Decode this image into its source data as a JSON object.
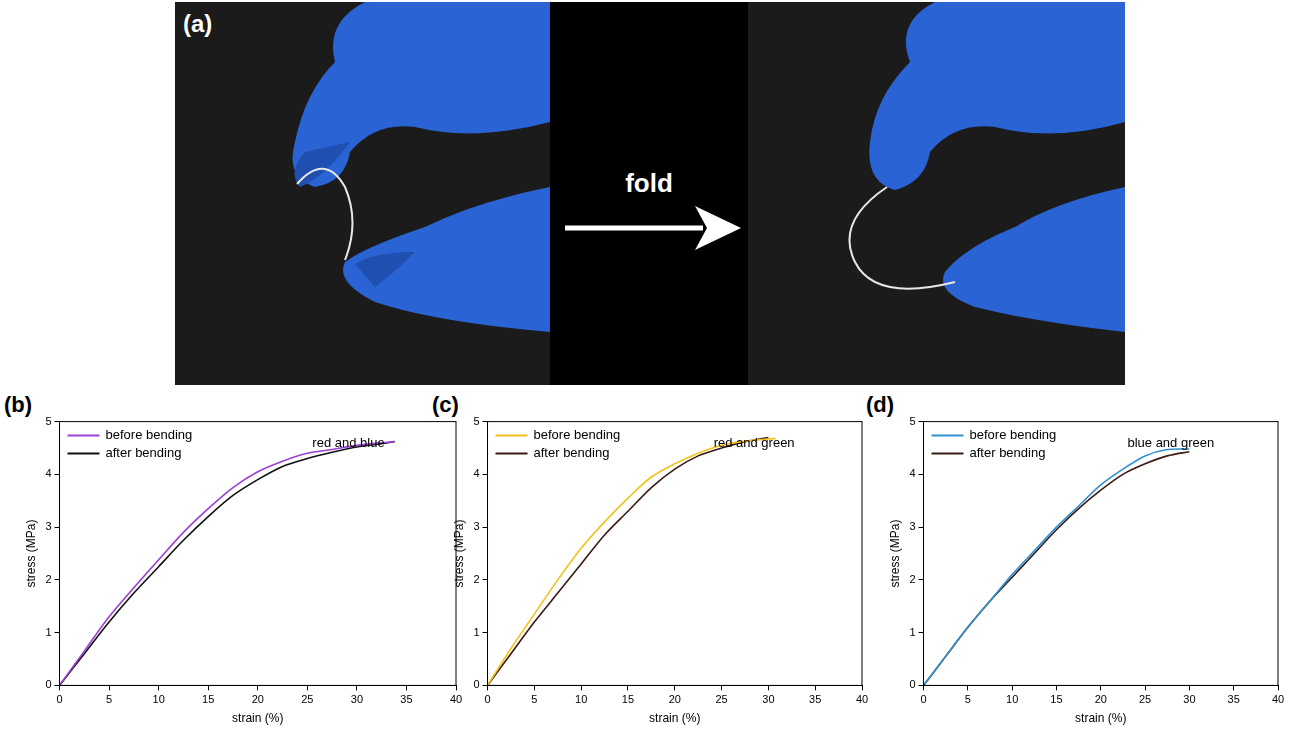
{
  "figure_a": {
    "panel_label": "(a)",
    "arrow_label": "fold"
  },
  "chart_data": [
    {
      "type": "line",
      "panel_label": "(b)",
      "annotation": "red and blue",
      "x_label": "strain (%)",
      "y_label": "stress (MPa)",
      "x": [
        0,
        2.5,
        5,
        7.5,
        10,
        12.5,
        15,
        17.5,
        20,
        22.5,
        25,
        27.5,
        30,
        32.5,
        33.8
      ],
      "series": [
        {
          "name": "before bending",
          "color": "#9b3fd6",
          "marker": "none",
          "line_style": "solid",
          "values": [
            0,
            0.65,
            1.3,
            1.85,
            2.38,
            2.9,
            3.35,
            3.75,
            4.05,
            4.25,
            4.4,
            4.47,
            4.55,
            4.6,
            4.62
          ]
        },
        {
          "name": "after bending",
          "color": "#111111",
          "marker": "none",
          "line_style": "solid",
          "values": [
            0,
            0.6,
            1.2,
            1.75,
            2.25,
            2.75,
            3.2,
            3.6,
            3.9,
            4.15,
            4.3,
            4.42,
            4.52,
            4.58,
            4.62
          ]
        }
      ],
      "xlim": [
        0,
        40
      ],
      "xticks": [
        0,
        5,
        10,
        15,
        20,
        25,
        30,
        35,
        40
      ],
      "ylim": [
        0,
        5
      ],
      "yticks": [
        0,
        1,
        2,
        3,
        4,
        5
      ],
      "grid": false,
      "legend": "upper left"
    },
    {
      "type": "line",
      "panel_label": "(c)",
      "annotation": "red and green",
      "x_label": "strain (%)",
      "y_label": "stress (MPa)",
      "x": [
        0,
        2.5,
        5,
        7.5,
        10,
        12.5,
        15,
        17.5,
        20,
        22.5,
        25,
        27.5,
        30,
        30.8
      ],
      "series": [
        {
          "name": "before bending",
          "color": "#f2c21b",
          "marker": "none",
          "line_style": "solid",
          "values": [
            0,
            0.7,
            1.35,
            2.0,
            2.6,
            3.1,
            3.55,
            3.95,
            4.2,
            4.4,
            4.55,
            4.63,
            4.67,
            4.68
          ]
        },
        {
          "name": "after bending",
          "color": "#3a1a12",
          "marker": "none",
          "line_style": "solid",
          "values": [
            0,
            0.6,
            1.2,
            1.75,
            2.3,
            2.85,
            3.3,
            3.75,
            4.1,
            4.35,
            4.5,
            4.62,
            4.7,
            null
          ]
        }
      ],
      "xlim": [
        0,
        40
      ],
      "xticks": [
        0,
        5,
        10,
        15,
        20,
        25,
        30,
        35,
        40
      ],
      "ylim": [
        0,
        5
      ],
      "yticks": [
        0,
        1,
        2,
        3,
        4,
        5
      ],
      "grid": false,
      "legend": "upper left"
    },
    {
      "type": "line",
      "panel_label": "(d)",
      "annotation": "blue and green",
      "x_label": "strain (%)",
      "y_label": "stress (MPa)",
      "x": [
        0,
        2.5,
        5,
        7.5,
        10,
        12.5,
        15,
        17.5,
        20,
        22.5,
        25,
        27.5,
        30
      ],
      "series": [
        {
          "name": "before bending",
          "color": "#2f8fd0",
          "marker": "none",
          "line_style": "solid",
          "values": [
            0,
            0.55,
            1.1,
            1.6,
            2.1,
            2.55,
            3.0,
            3.4,
            3.8,
            4.1,
            4.35,
            4.47,
            4.48
          ]
        },
        {
          "name": "after bending",
          "color": "#3a1a12",
          "marker": "none",
          "line_style": "solid",
          "values": [
            0,
            0.55,
            1.1,
            1.6,
            2.05,
            2.5,
            2.95,
            3.35,
            3.7,
            4.0,
            4.2,
            4.35,
            4.43
          ]
        }
      ],
      "xlim": [
        0,
        40
      ],
      "xticks": [
        0,
        5,
        10,
        15,
        20,
        25,
        30,
        35,
        40
      ],
      "ylim": [
        0,
        5
      ],
      "yticks": [
        0,
        1,
        2,
        3,
        4,
        5
      ],
      "grid": false,
      "legend": "upper left"
    }
  ]
}
